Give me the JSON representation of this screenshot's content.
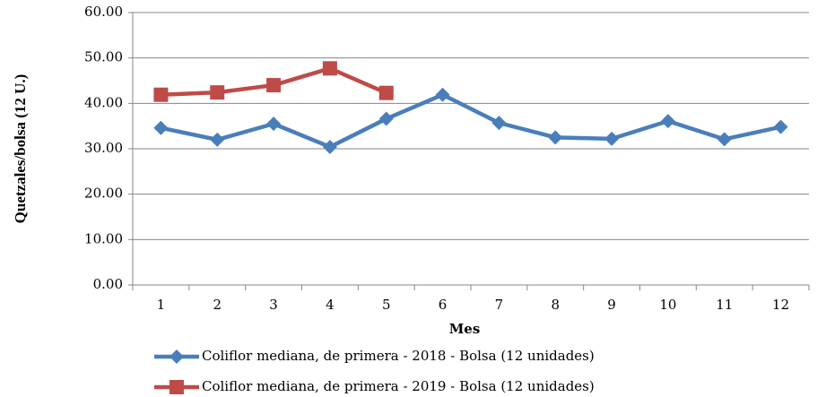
{
  "chart_data": {
    "type": "line",
    "x_label": "Mes",
    "y_label": "Quetzales/bolsa (12 U.)",
    "categories": [
      "1",
      "2",
      "3",
      "4",
      "5",
      "6",
      "7",
      "8",
      "9",
      "10",
      "11",
      "12"
    ],
    "series": [
      {
        "name": "Coliflor mediana, de primera - 2018 - Bolsa (12 unidades)",
        "color": "#4a7ebb",
        "marker": "diamond",
        "values": [
          34.6,
          32.0,
          35.5,
          30.4,
          36.6,
          41.9,
          35.7,
          32.5,
          32.2,
          36.1,
          32.1,
          34.8
        ]
      },
      {
        "name": "Coliflor mediana, de primera - 2019 - Bolsa (12 unidades)",
        "color": "#be4b48",
        "marker": "square",
        "values": [
          41.9,
          42.4,
          44.0,
          47.7,
          42.3,
          null,
          null,
          null,
          null,
          null,
          null,
          null
        ]
      }
    ],
    "ylim": [
      0,
      60
    ],
    "yticks": [
      {
        "value": 0,
        "label": "0.00"
      },
      {
        "value": 10,
        "label": "10.00"
      },
      {
        "value": 20,
        "label": "20.00"
      },
      {
        "value": 30,
        "label": "30.00"
      },
      {
        "value": 40,
        "label": "40.00"
      },
      {
        "value": 50,
        "label": "50.00"
      },
      {
        "value": 60,
        "label": "60.00"
      }
    ],
    "grid": true,
    "legend": "bottom"
  }
}
